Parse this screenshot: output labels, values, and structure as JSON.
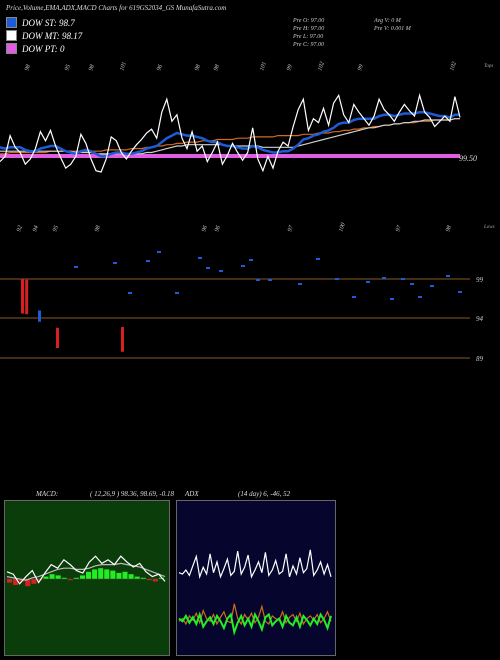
{
  "header": {
    "title": "Price,Volume,EMA,ADX,MACD Charts for 619GS2034_GS MunafaSutra.com"
  },
  "legend": [
    {
      "label": "DOW ST: 98.7",
      "color": "#1e5bd6"
    },
    {
      "label": "DOW MT: 98.17",
      "color": "#ffffff"
    },
    {
      "label": "DOW PT: 0",
      "color": "#e05ce0"
    }
  ],
  "ohlc": {
    "open": "Pre   O: 97.00",
    "high": "Pre   H: 97.00",
    "low": "Pre   L: 97.00",
    "close": "Pre   C: 97.00",
    "avg_vol": "Avg V: 0   M",
    "prev_vol": "Pre   V: 0.001 M"
  },
  "chart_data": [
    {
      "type": "line",
      "panel": "price",
      "top_labels": [
        "98",
        "95",
        "98",
        "101",
        "96",
        "98",
        "98",
        "101",
        "99",
        "102",
        "99",
        "102"
      ],
      "bottom_labels": [
        "92",
        "94",
        "95",
        "98",
        "96",
        "96",
        "97",
        "100",
        "97",
        "98"
      ],
      "top_right_label": "Tops",
      "bottom_right_label": "Lows",
      "price_marker": "99.50",
      "series": [
        {
          "name": "close",
          "color": "#ffffff",
          "values": [
            96.8,
            97.2,
            98.8,
            97.9,
            97.5,
            96.6,
            97.0,
            97.8,
            99.1,
            98.4,
            99.2,
            98.0,
            97.1,
            96.3,
            96.6,
            97.2,
            98.9,
            98.2,
            97.0,
            96.1,
            96.0,
            97.0,
            98.7,
            98.4,
            97.5,
            97.0,
            97.6,
            98.1,
            98.5,
            99.0,
            99.3,
            98.6,
            100.6,
            101.6,
            99.9,
            100.4,
            98.6,
            97.8,
            99.1,
            97.6,
            98.0,
            96.8,
            97.5,
            98.3,
            96.6,
            97.3,
            98.2,
            97.5,
            96.9,
            97.5,
            99.4,
            97.0,
            96.1,
            97.2,
            96.3,
            97.6,
            98.3,
            98.0,
            99.5,
            100.8,
            101.6,
            99.2,
            100.1,
            99.8,
            100.9,
            99.6,
            101.3,
            101.9,
            100.4,
            99.8,
            101.2,
            100.6,
            100.1,
            99.6,
            100.3,
            101.6,
            100.8,
            100.4,
            99.9,
            100.6,
            101.2,
            100.7,
            100.3,
            101.9,
            100.6,
            100.2,
            99.5,
            99.9,
            100.3,
            99.9,
            101.8,
            100.2
          ]
        },
        {
          "name": "EMA short",
          "color": "#1e5bd6",
          "values": [
            97.9,
            97.8,
            97.9,
            97.9,
            97.9,
            97.7,
            97.6,
            97.6,
            97.8,
            97.9,
            98.0,
            98.0,
            97.8,
            97.6,
            97.5,
            97.4,
            97.6,
            97.7,
            97.6,
            97.4,
            97.2,
            97.2,
            97.4,
            97.5,
            97.5,
            97.4,
            97.4,
            97.5,
            97.6,
            97.8,
            97.9,
            98.0,
            98.3,
            98.6,
            98.8,
            99.0,
            98.9,
            98.8,
            98.8,
            98.7,
            98.6,
            98.4,
            98.3,
            98.3,
            98.1,
            98.0,
            98.0,
            97.9,
            97.8,
            97.8,
            98.0,
            97.9,
            97.7,
            97.6,
            97.5,
            97.5,
            97.6,
            97.6,
            97.8,
            98.1,
            98.5,
            98.6,
            98.8,
            98.9,
            99.1,
            99.2,
            99.4,
            99.7,
            99.8,
            99.8,
            100.0,
            100.1,
            100.1,
            100.1,
            100.1,
            100.3,
            100.4,
            100.4,
            100.3,
            100.4,
            100.5,
            100.5,
            100.5,
            100.6,
            100.6,
            100.5,
            100.4,
            100.3,
            100.3,
            100.2,
            100.4,
            100.4
          ]
        },
        {
          "name": "EMA mid",
          "color": "#cfcfcf",
          "values": [
            97.6,
            97.6,
            97.6,
            97.6,
            97.6,
            97.6,
            97.6,
            97.6,
            97.6,
            97.6,
            97.6,
            97.6,
            97.6,
            97.6,
            97.6,
            97.5,
            97.5,
            97.5,
            97.5,
            97.4,
            97.4,
            97.4,
            97.4,
            97.4,
            97.4,
            97.4,
            97.4,
            97.4,
            97.4,
            97.5,
            97.5,
            97.6,
            97.7,
            97.8,
            97.9,
            98.0,
            98.0,
            98.1,
            98.1,
            98.1,
            98.1,
            98.1,
            98.1,
            98.1,
            98.1,
            98.0,
            98.0,
            98.0,
            98.0,
            98.0,
            98.0,
            98.0,
            97.9,
            97.9,
            97.9,
            97.9,
            97.9,
            97.9,
            97.9,
            98.0,
            98.1,
            98.2,
            98.3,
            98.4,
            98.5,
            98.6,
            98.7,
            98.8,
            98.9,
            99.0,
            99.1,
            99.2,
            99.3,
            99.4,
            99.4,
            99.5,
            99.6,
            99.6,
            99.7,
            99.7,
            99.8,
            99.8,
            99.9,
            99.9,
            100.0,
            100.0,
            100.0,
            100.0,
            100.0,
            100.0,
            100.1,
            100.1
          ]
        },
        {
          "name": "EMA long",
          "color": "#d2691e",
          "values": [
            97.4,
            97.4,
            97.5,
            97.5,
            97.5,
            97.5,
            97.5,
            97.5,
            97.5,
            97.5,
            97.6,
            97.6,
            97.6,
            97.6,
            97.6,
            97.6,
            97.6,
            97.6,
            97.6,
            97.6,
            97.6,
            97.7,
            97.7,
            97.7,
            97.7,
            97.7,
            97.8,
            97.8,
            97.8,
            97.9,
            97.9,
            98.0,
            98.0,
            98.1,
            98.1,
            98.2,
            98.2,
            98.3,
            98.3,
            98.3,
            98.4,
            98.4,
            98.4,
            98.5,
            98.5,
            98.5,
            98.5,
            98.6,
            98.6,
            98.6,
            98.7,
            98.7,
            98.7,
            98.7,
            98.7,
            98.8,
            98.8,
            98.8,
            98.8,
            98.8,
            98.9,
            98.9,
            98.9,
            99.0,
            99.0,
            99.0,
            99.1,
            99.1,
            99.2,
            99.2,
            99.3,
            99.3,
            99.4,
            99.4,
            99.5,
            99.5,
            99.6,
            99.6,
            99.7,
            99.7,
            99.8,
            99.8,
            99.8,
            99.9,
            99.9,
            99.9,
            100.0,
            100.0,
            100.0,
            100.0,
            100.1,
            100.1
          ]
        }
      ]
    },
    {
      "type": "bar",
      "panel": "volume",
      "right_labels": [
        "99",
        "94",
        "89"
      ],
      "tall_bars": [
        {
          "x": 0.15,
          "top": 0.06,
          "bottom": 0.52,
          "color": "#d92020"
        },
        {
          "x": 0.36,
          "top": 0.05,
          "bottom": 0.51,
          "color": "#d92020"
        },
        {
          "x": 1.0,
          "top": -0.05,
          "bottom": 0.1,
          "color": "#1e5bd6"
        },
        {
          "x": 1.9,
          "top": -0.4,
          "bottom": -0.13,
          "color": "#d92020"
        },
        {
          "x": 5.15,
          "top": -0.45,
          "bottom": -0.12,
          "color": "#d92020"
        }
      ]
    },
    {
      "type": "bar",
      "panel": "macd",
      "title": "MACD:",
      "params": "( 12,26,9 ) 98.36,  98.69,  -0.18",
      "histogram": [
        -0.3,
        -0.5,
        -0.2,
        -0.6,
        -0.4,
        -0.1,
        0.2,
        0.4,
        0.3,
        0.1,
        -0.1,
        0.1,
        0.3,
        0.6,
        0.8,
        0.9,
        0.8,
        0.7,
        0.5,
        0.6,
        0.4,
        0.2,
        0.1,
        -0.1,
        -0.2,
        0.1
      ],
      "macd_line": [
        0.6,
        0.4,
        -0.4,
        0.2,
        0.7,
        -0.3,
        0.5,
        1.2,
        0.9,
        1.6,
        1.2,
        0.7,
        0.5,
        1.4,
        1.9,
        1.3,
        1.6,
        1.2,
        1.9,
        1.4,
        1.0,
        1.3,
        0.6,
        0.2,
        0.4,
        -0.2
      ],
      "signal_line": [
        0.2,
        0.1,
        0.0,
        -0.1,
        0.1,
        0.2,
        0.4,
        0.6,
        0.8,
        0.9,
        0.9,
        0.8,
        0.8,
        0.9,
        1.1,
        1.2,
        1.2,
        1.2,
        1.3,
        1.2,
        1.1,
        1.0,
        0.8,
        0.6,
        0.4,
        0.2
      ]
    },
    {
      "type": "line",
      "panel": "adx",
      "title": "ADX",
      "params": "(14  day) 6,  -46,  52",
      "series": [
        {
          "name": "ADX",
          "color": "#ffffff",
          "values": [
            58,
            57,
            60,
            56,
            63,
            70,
            55,
            62,
            57,
            72,
            58,
            66,
            55,
            61,
            68,
            56,
            59,
            74,
            57,
            62,
            71,
            55,
            60,
            66,
            58,
            73,
            56,
            60,
            67,
            57,
            59,
            72,
            55,
            63,
            57,
            69,
            58,
            61,
            75,
            56,
            60,
            66,
            57,
            64,
            55
          ]
        },
        {
          "name": "+DI",
          "color": "#d2691e",
          "values": [
            22,
            24,
            20,
            26,
            23,
            28,
            21,
            30,
            24,
            22,
            27,
            20,
            25,
            29,
            22,
            21,
            35,
            24,
            20,
            27,
            23,
            28,
            21,
            25,
            33,
            22,
            20,
            26,
            24,
            23,
            29,
            21,
            25,
            27,
            22,
            28,
            20,
            24,
            26,
            23,
            27,
            21,
            24,
            29,
            22
          ]
        },
        {
          "name": "-DI",
          "color": "#22ee22",
          "values": [
            24,
            22,
            26,
            21,
            25,
            20,
            27,
            18,
            22,
            25,
            20,
            26,
            22,
            17,
            24,
            27,
            14,
            21,
            26,
            19,
            24,
            18,
            27,
            22,
            16,
            25,
            27,
            19,
            22,
            24,
            18,
            26,
            21,
            19,
            25,
            18,
            26,
            23,
            19,
            24,
            20,
            27,
            23,
            17,
            26
          ]
        }
      ]
    }
  ]
}
